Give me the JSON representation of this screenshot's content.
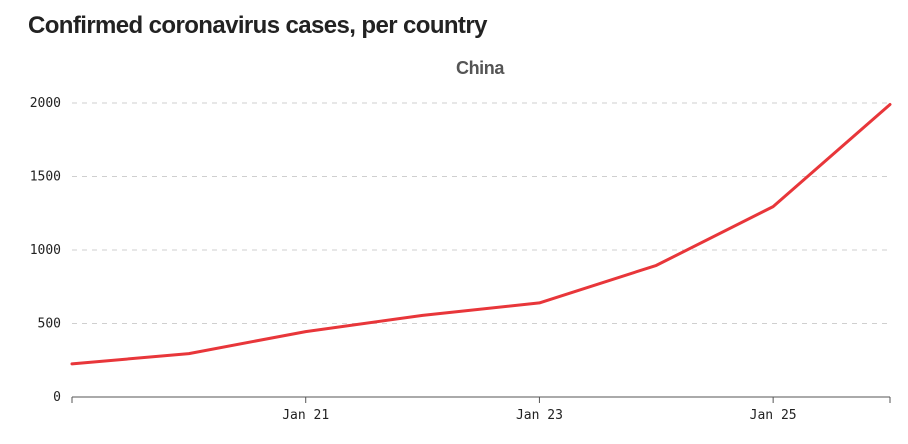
{
  "chart_data": {
    "type": "line",
    "title": "Confirmed coronavirus cases, per country",
    "subtitle": "China",
    "xlabel": "",
    "ylabel": "",
    "x": [
      "2020-01-19",
      "2020-01-20",
      "2020-01-21",
      "2020-01-22",
      "2020-01-23",
      "2020-01-24",
      "2020-01-25",
      "2020-01-26"
    ],
    "xlim": [
      "2020-01-19",
      "2020-01-26"
    ],
    "x_tick_labels": [
      "Jan 21",
      "Jan 23",
      "Jan 25"
    ],
    "x_tick_positions": [
      "2020-01-21",
      "2020-01-23",
      "2020-01-25"
    ],
    "ylim": [
      0,
      2000
    ],
    "y_ticks": [
      0,
      500,
      1000,
      1500,
      2000
    ],
    "y_tick_labels": [
      "0",
      "500",
      "1000",
      "1500",
      "2000"
    ],
    "grid": "horizontal dashed",
    "series": [
      {
        "color": "#e8363a",
        "values": [
          225,
          295,
          445,
          555,
          640,
          895,
          1295,
          1990
        ]
      }
    ]
  }
}
